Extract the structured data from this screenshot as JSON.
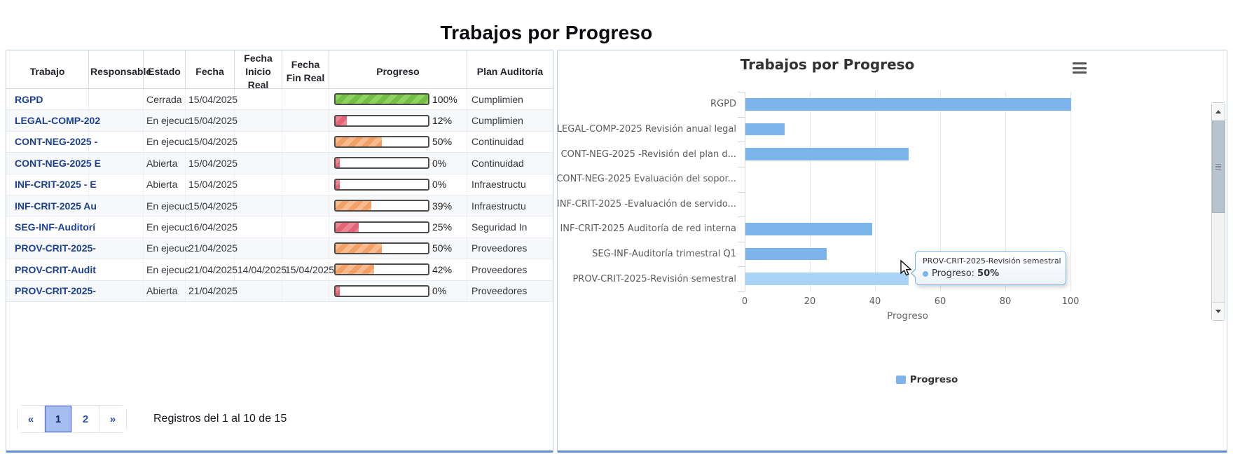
{
  "page_title": "Trabajos por Progreso",
  "colors": {
    "accent_blue": "#7cb5ec",
    "hover_bar_blue": "#a9d4f7",
    "link_blue": "#1c4193",
    "panel_bottom_border": "#5f8fd2",
    "progress_green": "#8ed25f",
    "progress_red": "#ee8593",
    "progress_orange": "#f8bb8e",
    "pagination_active_bg": "#a5bdf1"
  },
  "icons": {
    "chart_menu": "hamburger-icon",
    "scroll_up": "triangle-up-icon",
    "scroll_down": "triangle-down-icon",
    "series_marker": "circle-dot-icon"
  },
  "table": {
    "columns": [
      "Trabajo",
      "Responsable",
      "Estado",
      "Fecha",
      "Fecha Inicio Real",
      "Fecha Fin Real",
      "Progreso",
      "Plan Auditoría"
    ],
    "rows": [
      {
        "trabajo": "RGPD",
        "responsable": "",
        "estado": "Cerrada",
        "fecha": "15/04/2025",
        "fecha_inicio_real": "",
        "fecha_fin_real": "",
        "progreso_pct": 100,
        "progreso_label": "100%",
        "bar": "g",
        "plan_auditoria": "Cumplimien"
      },
      {
        "trabajo": "LEGAL-COMP-202",
        "responsable": "",
        "estado": "En ejecuc",
        "fecha": "15/04/2025",
        "fecha_inicio_real": "",
        "fecha_fin_real": "",
        "progreso_pct": 12,
        "progreso_label": "12%",
        "bar": "r",
        "plan_auditoria": "Cumplimien"
      },
      {
        "trabajo": "CONT-NEG-2025 -",
        "responsable": "",
        "estado": "En ejecuc",
        "fecha": "15/04/2025",
        "fecha_inicio_real": "",
        "fecha_fin_real": "",
        "progreso_pct": 50,
        "progreso_label": "50%",
        "bar": "o",
        "plan_auditoria": "Continuidad"
      },
      {
        "trabajo": "CONT-NEG-2025 E",
        "responsable": "",
        "estado": "Abierta",
        "fecha": "15/04/2025",
        "fecha_inicio_real": "",
        "fecha_fin_real": "",
        "progreso_pct": 0,
        "progreso_label": "0%",
        "bar": "r",
        "plan_auditoria": "Continuidad"
      },
      {
        "trabajo": "INF-CRIT-2025 - E",
        "responsable": "",
        "estado": "Abierta",
        "fecha": "15/04/2025",
        "fecha_inicio_real": "",
        "fecha_fin_real": "",
        "progreso_pct": 0,
        "progreso_label": "0%",
        "bar": "r",
        "plan_auditoria": "Infraestructu"
      },
      {
        "trabajo": "INF-CRIT-2025 Au",
        "responsable": "",
        "estado": "En ejecuc",
        "fecha": "15/04/2025",
        "fecha_inicio_real": "",
        "fecha_fin_real": "",
        "progreso_pct": 39,
        "progreso_label": "39%",
        "bar": "o",
        "plan_auditoria": "Infraestructu"
      },
      {
        "trabajo": "SEG-INF-Auditorí",
        "responsable": "",
        "estado": "En ejecuc",
        "fecha": "16/04/2025",
        "fecha_inicio_real": "",
        "fecha_fin_real": "",
        "progreso_pct": 25,
        "progreso_label": "25%",
        "bar": "r",
        "plan_auditoria": "Seguridad In"
      },
      {
        "trabajo": "PROV-CRIT-2025-",
        "responsable": "",
        "estado": "En ejecuc",
        "fecha": "21/04/2025",
        "fecha_inicio_real": "",
        "fecha_fin_real": "",
        "progreso_pct": 50,
        "progreso_label": "50%",
        "bar": "o",
        "plan_auditoria": "Proveedores"
      },
      {
        "trabajo": "PROV-CRIT-Audit",
        "responsable": "",
        "estado": "En ejecuc",
        "fecha": "21/04/2025",
        "fecha_inicio_real": "14/04/2025",
        "fecha_fin_real": "15/04/2025",
        "progreso_pct": 42,
        "progreso_label": "42%",
        "bar": "o",
        "plan_auditoria": "Proveedores"
      },
      {
        "trabajo": "PROV-CRIT-2025-",
        "responsable": "",
        "estado": "Abierta",
        "fecha": "21/04/2025",
        "fecha_inicio_real": "",
        "fecha_fin_real": "",
        "progreso_pct": 0,
        "progreso_label": "0%",
        "bar": "r",
        "plan_auditoria": "Proveedores"
      }
    ],
    "pagination": {
      "first_label": "«",
      "pages": [
        "1",
        "2"
      ],
      "active_page": "1",
      "last_label": "»",
      "summary": "Registros del 1 al 10 de 15"
    }
  },
  "chart_data": {
    "type": "bar",
    "orientation": "horizontal",
    "title": "Trabajos por Progreso",
    "categories": [
      "RGPD",
      "LEGAL-COMP-2025 Revisión anual legal",
      "CONT-NEG-2025 -Revisión del plan d...",
      "CONT-NEG-2025 Evaluación del sopor...",
      "INF-CRIT-2025 -Evaluación de servido...",
      "INF-CRIT-2025 Auditoría de red interna",
      "SEG-INF-Auditoría trimestral Q1",
      "PROV-CRIT-2025-Revisión semestral"
    ],
    "series": [
      {
        "name": "Progreso",
        "values": [
          100,
          12,
          50,
          0,
          0,
          39,
          25,
          50
        ]
      }
    ],
    "xlabel": "Progreso",
    "xlim": [
      0,
      100
    ],
    "xtick_values": [
      0,
      20,
      40,
      60,
      80,
      100
    ],
    "xticks": [
      "0",
      "20",
      "40",
      "60",
      "80",
      "100"
    ],
    "grid": true,
    "legend_position": "bottom",
    "bar_color": "#7cb5ec",
    "hover_index": 7,
    "tooltip": {
      "title": "PROV-CRIT-2025-Revisión semestral",
      "series_label": "Progreso:",
      "value": "50%"
    }
  }
}
